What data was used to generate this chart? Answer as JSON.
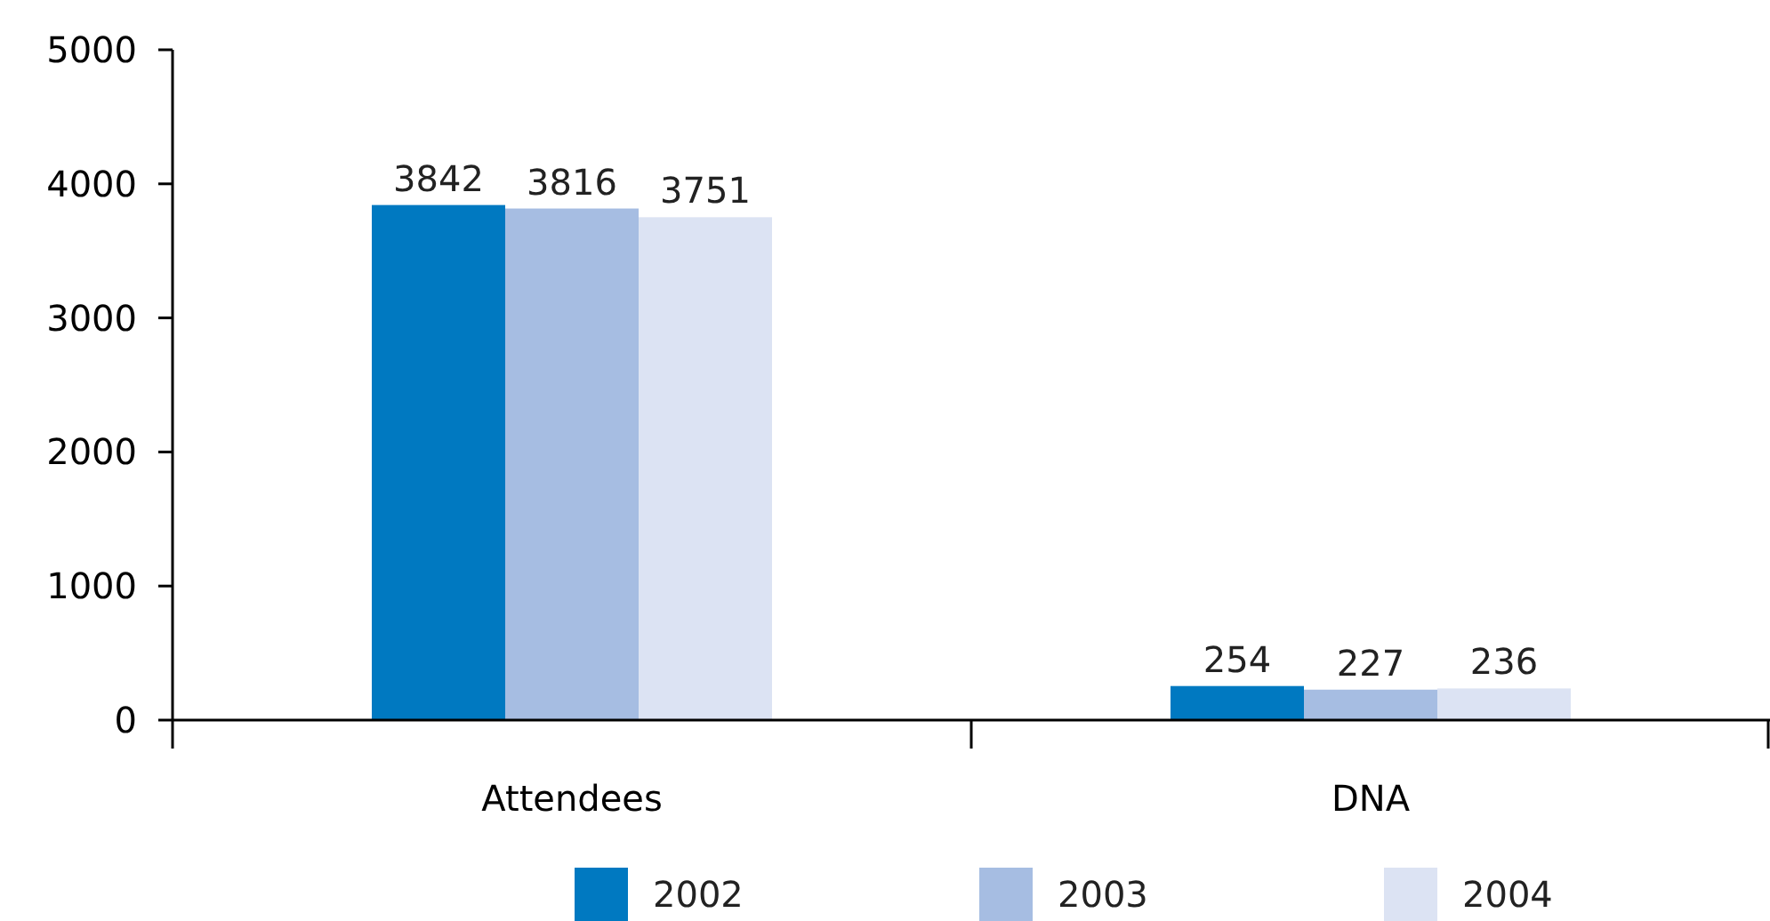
{
  "chart_data": {
    "type": "bar",
    "categories": [
      "Attendees",
      "DNA"
    ],
    "series": [
      {
        "name": "2002",
        "color": "#0079c1",
        "values": [
          3842,
          254
        ]
      },
      {
        "name": "2003",
        "color": "#a6bde2",
        "values": [
          3816,
          227
        ]
      },
      {
        "name": "2004",
        "color": "#dce3f3",
        "values": [
          3751,
          236
        ]
      }
    ],
    "ylim": [
      0,
      5000
    ],
    "yticks": [
      0,
      1000,
      2000,
      3000,
      4000,
      5000
    ],
    "data_labels": true,
    "legend": "bottom",
    "grid": false
  }
}
